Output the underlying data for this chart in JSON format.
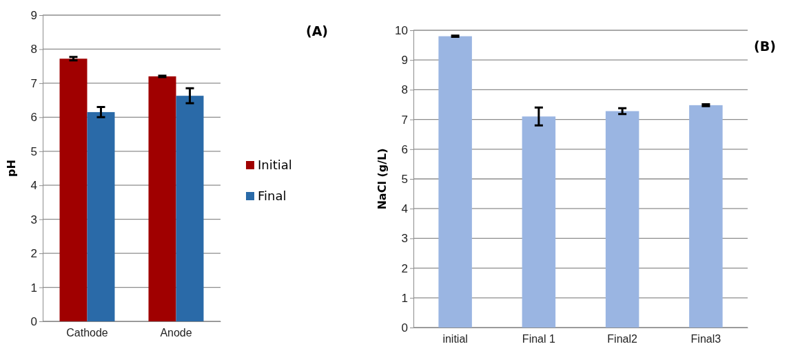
{
  "chart_data": [
    {
      "type": "bar",
      "ylabel": "pH",
      "categories": [
        "Cathode",
        "Anode"
      ],
      "series": [
        {
          "name": "Initial",
          "color": "#a00000",
          "values": [
            7.72,
            7.2
          ],
          "errors": [
            0.05,
            0.02
          ]
        },
        {
          "name": "Final",
          "color": "#2a6aa8",
          "values": [
            6.15,
            6.63
          ],
          "errors": [
            0.15,
            0.22
          ]
        }
      ],
      "ylim": [
        0,
        9
      ],
      "yticks": [
        0,
        1,
        2,
        3,
        4,
        5,
        6,
        7,
        8,
        9
      ],
      "grid": "y",
      "legend": "right",
      "annotations": [
        "(A)"
      ]
    },
    {
      "type": "bar",
      "ylabel": "NaCl (g/L)",
      "categories": [
        "initial",
        "Final 1",
        "Final2",
        "Final3"
      ],
      "series": [
        {
          "color": "#9ab5e2",
          "values": [
            9.8,
            7.1,
            7.28,
            7.48
          ],
          "errors": [
            0.02,
            0.3,
            0.1,
            0.03
          ]
        }
      ],
      "ylim": [
        0,
        10
      ],
      "yticks": [
        0,
        1,
        2,
        3,
        4,
        5,
        6,
        7,
        8,
        9,
        10
      ],
      "grid": "y",
      "legend": false,
      "annotations": [
        "(B)"
      ]
    }
  ]
}
